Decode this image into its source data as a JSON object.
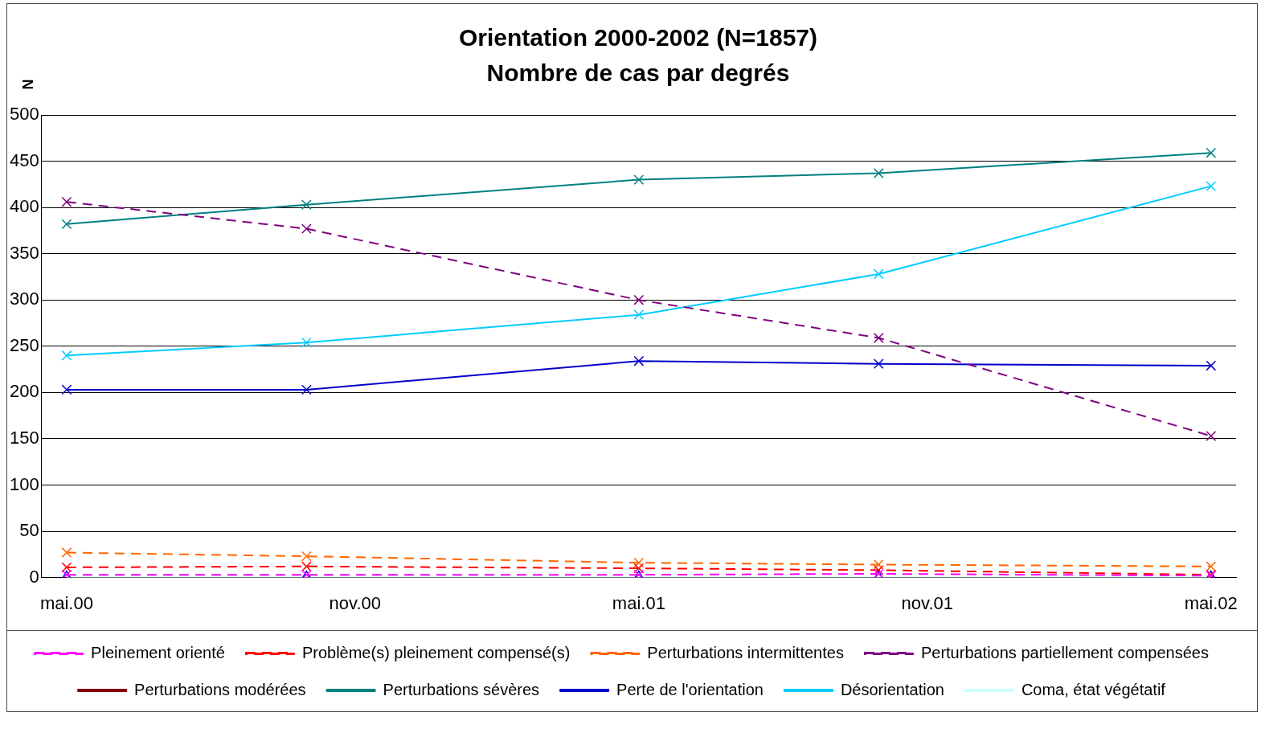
{
  "chart_data": {
    "type": "line",
    "title": "Orientation 2000-2002 (N=1857)",
    "subtitle": "Nombre de cas par degrés",
    "ylabel": "N",
    "x": [
      "2000-05-01",
      "2000-10-01",
      "2001-05-01",
      "2001-10-01",
      "2002-05-01"
    ],
    "xlim": [
      "2000-04-15",
      "2002-05-17"
    ],
    "xticks": [
      {
        "value": "2000-05-01",
        "label": "mai.00"
      },
      {
        "value": "2000-11-01",
        "label": "nov.00"
      },
      {
        "value": "2001-05-01",
        "label": "mai.01"
      },
      {
        "value": "2001-11-01",
        "label": "nov.01"
      },
      {
        "value": "2002-05-01",
        "label": "mai.02"
      }
    ],
    "ylim": [
      0,
      500
    ],
    "yticks": [
      0,
      50,
      100,
      150,
      200,
      250,
      300,
      350,
      400,
      450,
      500
    ],
    "grid": "y",
    "legend": "bottom",
    "marker": "cross",
    "series": [
      {
        "name": "Pleinement orienté",
        "color": "#ff00ff",
        "line_style": "dashed",
        "values": [
          3,
          3,
          3,
          4,
          2
        ]
      },
      {
        "name": "Problème(s) pleinement compensé(s)",
        "color": "#ff0000",
        "line_style": "dashed",
        "values": [
          11,
          12,
          10,
          8,
          3
        ]
      },
      {
        "name": "Perturbations intermittentes",
        "color": "#ff6600",
        "line_style": "dashed",
        "values": [
          27,
          23,
          16,
          14,
          12
        ]
      },
      {
        "name": "Perturbations partiellement compensées",
        "color": "#800080",
        "line_style": "dashed",
        "values": [
          406,
          377,
          300,
          259,
          153
        ]
      },
      {
        "name": "Perturbations modérées",
        "color": "#800000",
        "line_style": "solid",
        "values": [
          null,
          null,
          null,
          null,
          null
        ]
      },
      {
        "name": "Perturbations sévères",
        "color": "#008080",
        "line_style": "solid",
        "values": [
          382,
          403,
          430,
          437,
          459
        ]
      },
      {
        "name": "Perte de l'orientation",
        "color": "#0000cc",
        "line_style": "solid",
        "values": [
          203,
          203,
          234,
          231,
          229
        ]
      },
      {
        "name": "Désorientation",
        "color": "#00ccff",
        "line_style": "solid",
        "values": [
          240,
          254,
          284,
          328,
          423
        ]
      },
      {
        "name": "Coma, état végétatif",
        "color": "#ccffff",
        "colors": [
          "#0000ff",
          "#0000ff",
          "#0000ff",
          "#0000ff",
          "#0000ff"
        ],
        "line_style": "solid",
        "marker": "triangle",
        "values": [
          0,
          0,
          0,
          0,
          0
        ]
      }
    ]
  }
}
